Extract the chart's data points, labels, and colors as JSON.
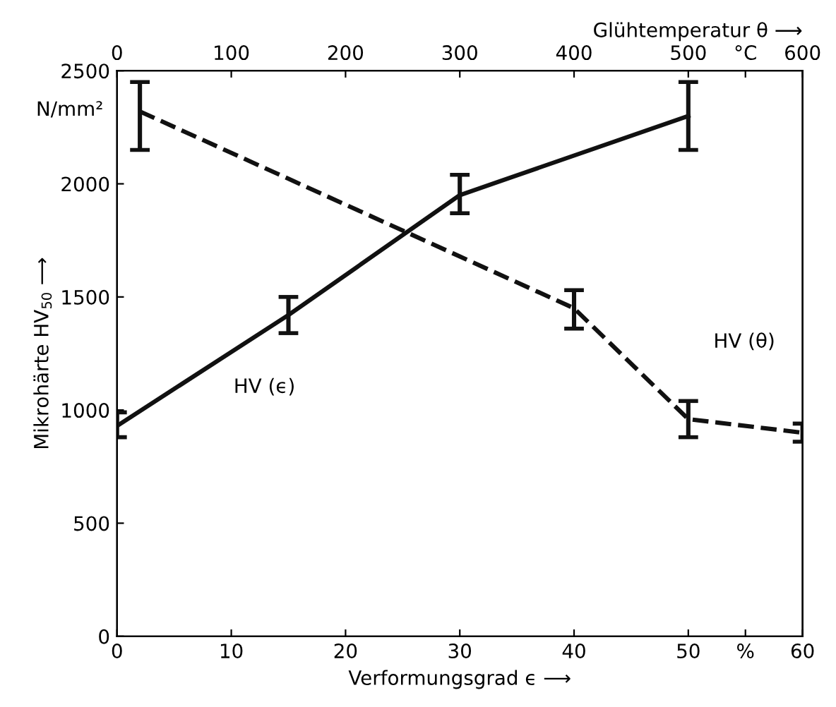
{
  "chart_data": {
    "type": "line",
    "xlabel": "Verformungsgrad ϵ ⟶",
    "x2label": "Glühtemperatur θ ⟶",
    "ylabel": "Mikrohärte HV$_{50}$ ⟶",
    "xlim": [
      0,
      60
    ],
    "xticks": [
      0,
      10,
      20,
      30,
      40,
      50,
      {
        "value": 55,
        "label": "%"
      },
      60
    ],
    "x2lim": [
      0,
      600
    ],
    "x2ticks": [
      0,
      100,
      200,
      300,
      400,
      500,
      {
        "value": 550,
        "label": "°C"
      },
      600
    ],
    "ylim": [
      0,
      2500
    ],
    "yticks": [
      0,
      500,
      1000,
      1500,
      2000,
      2500
    ],
    "grid": false,
    "legend": false,
    "marker": "none",
    "series": [
      {
        "color": "#111111",
        "line_style": "solid",
        "x": [
          0,
          15,
          30,
          50
        ],
        "values": [
          930,
          1420,
          1950,
          2300
        ],
        "errors": [
          [
            880,
            990
          ],
          [
            1340,
            1500
          ],
          [
            1870,
            2040
          ],
          [
            2150,
            2450
          ]
        ]
      },
      {
        "color": "#111111",
        "line_style": "dashed",
        "axis": "x2",
        "x": [
          20,
          400,
          500,
          600
        ],
        "values": [
          2320,
          1450,
          960,
          900
        ],
        "errors": [
          [
            2150,
            2450
          ],
          [
            1360,
            1530
          ],
          [
            880,
            1040
          ],
          [
            860,
            940
          ]
        ]
      }
    ],
    "annotations": [
      "HV (ϵ)",
      "HV (θ)",
      "N/mm²"
    ]
  }
}
